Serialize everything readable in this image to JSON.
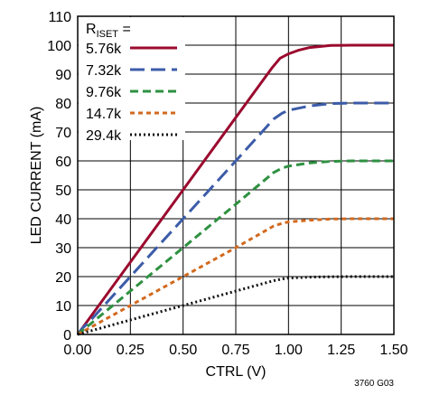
{
  "chart_data": {
    "type": "line",
    "title": "",
    "xlabel": "CTRL (V)",
    "ylabel": "LED CURRENT (mA)",
    "xlim": [
      0,
      1.5
    ],
    "ylim": [
      0,
      110
    ],
    "xticks": [
      "0.00",
      "0.25",
      "0.50",
      "0.75",
      "1.00",
      "1.25",
      "1.50"
    ],
    "yticks": [
      "0",
      "10",
      "20",
      "30",
      "40",
      "50",
      "60",
      "70",
      "80",
      "90",
      "100",
      "110"
    ],
    "grid": true,
    "legend_title": "R",
    "legend_title_sub": "ISET",
    "legend_title_suffix": " =",
    "legend_position": "top-left",
    "figure_code": "3760 G03",
    "series": [
      {
        "name": "5.76k",
        "color": "#9b0a2e",
        "dash": "solid",
        "points": [
          [
            0,
            0
          ],
          [
            0.02,
            2
          ],
          [
            0.05,
            5
          ],
          [
            0.25,
            25
          ],
          [
            0.5,
            50
          ],
          [
            0.75,
            75
          ],
          [
            0.92,
            92
          ],
          [
            0.96,
            95.5
          ],
          [
            1.0,
            97
          ],
          [
            1.05,
            98.3
          ],
          [
            1.1,
            99.2
          ],
          [
            1.2,
            99.9
          ],
          [
            1.3,
            100
          ],
          [
            1.5,
            100
          ]
        ]
      },
      {
        "name": "7.32k",
        "color": "#3c5ca8",
        "dash": "long",
        "points": [
          [
            0,
            0
          ],
          [
            0.02,
            2
          ],
          [
            0.05,
            4
          ],
          [
            0.25,
            20
          ],
          [
            0.5,
            40
          ],
          [
            0.75,
            60
          ],
          [
            0.93,
            74.5
          ],
          [
            0.97,
            76.5
          ],
          [
            1.0,
            77.5
          ],
          [
            1.1,
            79
          ],
          [
            1.2,
            79.8
          ],
          [
            1.3,
            80
          ],
          [
            1.5,
            80
          ]
        ]
      },
      {
        "name": "9.76k",
        "color": "#2e9141",
        "dash": "medium",
        "points": [
          [
            0,
            0
          ],
          [
            0.05,
            3
          ],
          [
            0.25,
            15
          ],
          [
            0.5,
            30
          ],
          [
            0.75,
            45
          ],
          [
            0.93,
            56
          ],
          [
            0.97,
            57.5
          ],
          [
            1.0,
            58.2
          ],
          [
            1.1,
            59.3
          ],
          [
            1.2,
            59.8
          ],
          [
            1.3,
            60
          ],
          [
            1.5,
            60
          ]
        ]
      },
      {
        "name": "14.7k",
        "color": "#d2691e",
        "dash": "short",
        "points": [
          [
            0,
            0
          ],
          [
            0.05,
            2
          ],
          [
            0.25,
            10
          ],
          [
            0.5,
            20
          ],
          [
            0.75,
            30
          ],
          [
            0.93,
            37.5
          ],
          [
            0.97,
            38.4
          ],
          [
            1.0,
            38.9
          ],
          [
            1.1,
            39.5
          ],
          [
            1.2,
            39.9
          ],
          [
            1.3,
            40
          ],
          [
            1.5,
            40
          ]
        ]
      },
      {
        "name": "29.4k",
        "color": "#111111",
        "dash": "dot",
        "points": [
          [
            0,
            0
          ],
          [
            0.05,
            1
          ],
          [
            0.25,
            5
          ],
          [
            0.5,
            10
          ],
          [
            0.75,
            15
          ],
          [
            0.93,
            18.6
          ],
          [
            0.97,
            19.2
          ],
          [
            1.0,
            19.5
          ],
          [
            1.1,
            19.8
          ],
          [
            1.2,
            19.95
          ],
          [
            1.3,
            20
          ],
          [
            1.5,
            20
          ]
        ]
      }
    ]
  }
}
